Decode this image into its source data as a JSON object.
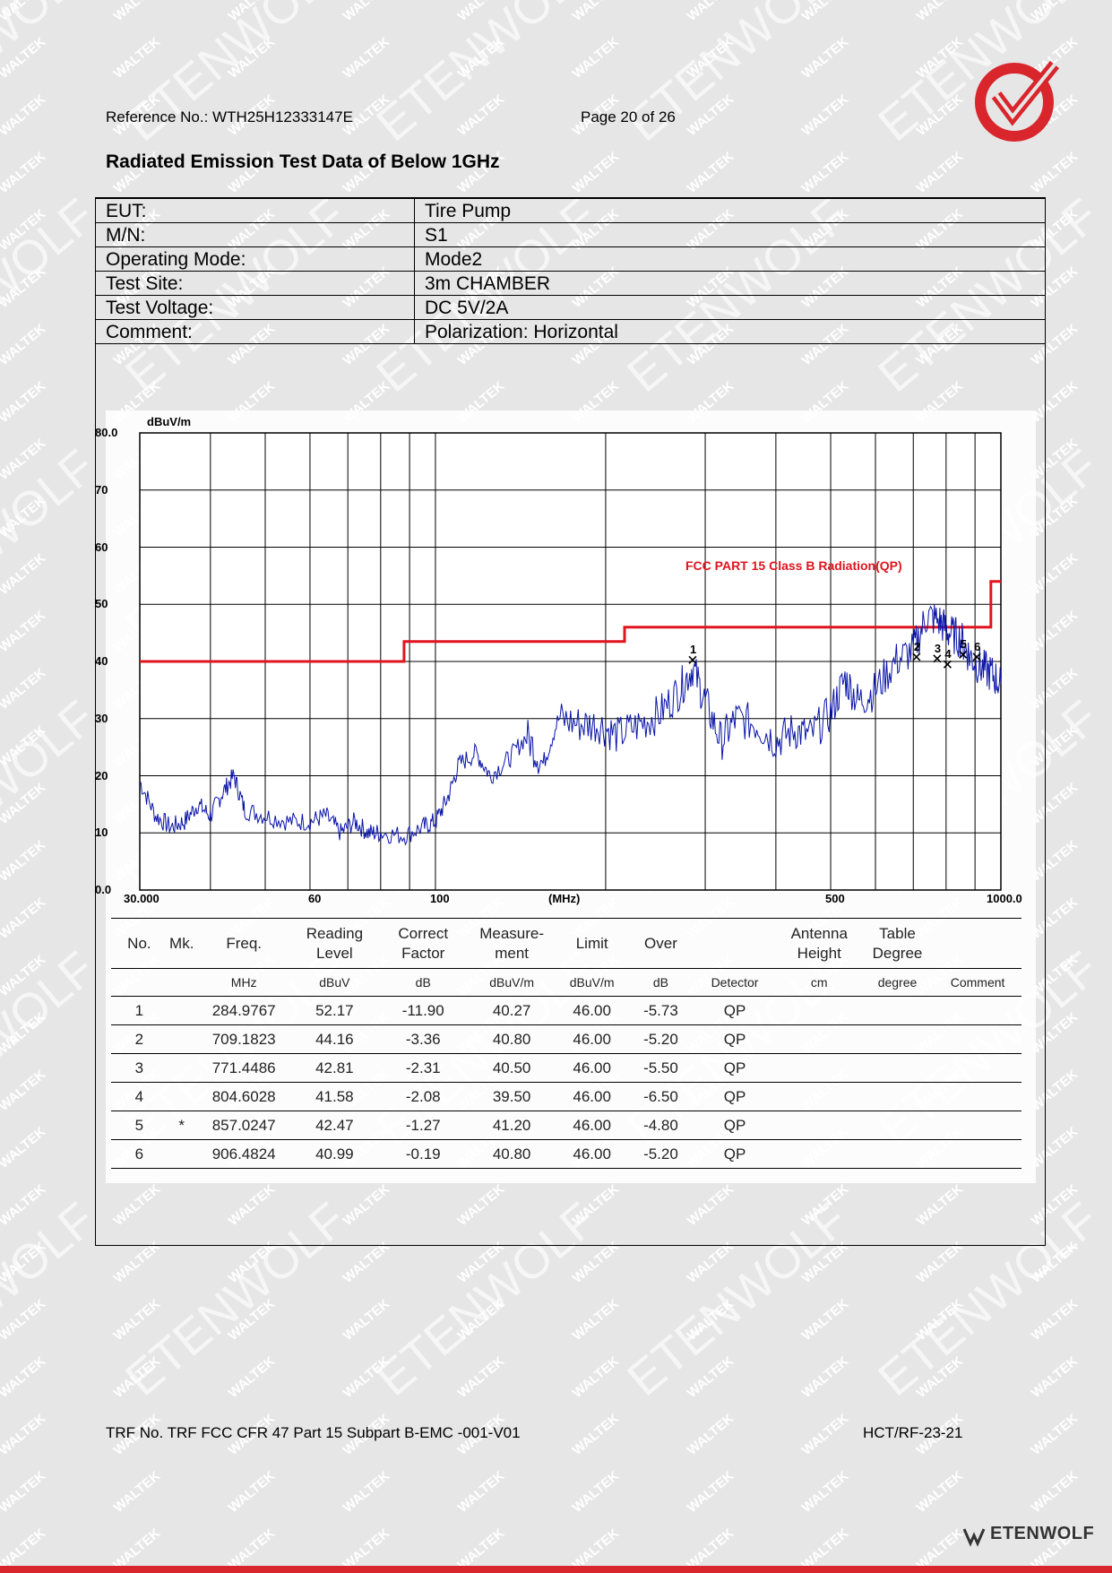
{
  "header": {
    "reference": "Reference No.: WTH25H12333147E",
    "page": "Page 20 of 26"
  },
  "title": "Radiated Emission Test Data of Below 1GHz",
  "info": [
    {
      "label": "EUT:",
      "value": "Tire Pump"
    },
    {
      "label": "M/N:",
      "value": "S1"
    },
    {
      "label": "Operating Mode:",
      "value": "Mode2"
    },
    {
      "label": "Test Site:",
      "value": "3m CHAMBER"
    },
    {
      "label": "Test Voltage:",
      "value": "DC 5V/2A"
    },
    {
      "label": "Comment:",
      "value": "Polarization: Horizontal"
    }
  ],
  "chart_data": {
    "type": "line",
    "ylabel": "dBuV/m",
    "xlabel": "(MHz)",
    "x_scale": "log",
    "xlim": [
      30,
      1000
    ],
    "ylim": [
      0,
      80
    ],
    "y_ticks": [
      "80.0",
      "70",
      "60",
      "50",
      "40",
      "30",
      "20",
      "10",
      "0.0"
    ],
    "x_tick_labels": [
      "30.000",
      "60",
      "100",
      "500",
      "1000.0"
    ],
    "grid": true,
    "limit_line": {
      "name": "FCC PART 15 Class B Radiation(QP)",
      "color": "#e0141e",
      "points": [
        [
          30,
          40
        ],
        [
          88,
          40
        ],
        [
          88,
          43.5
        ],
        [
          216,
          43.5
        ],
        [
          216,
          46
        ],
        [
          960,
          46
        ],
        [
          960,
          54
        ],
        [
          1000,
          54
        ]
      ]
    },
    "trace": {
      "color": "#0a14a8",
      "anchors": [
        [
          30,
          19
        ],
        [
          32,
          13
        ],
        [
          34,
          11
        ],
        [
          36,
          12
        ],
        [
          38,
          15
        ],
        [
          40,
          13
        ],
        [
          42,
          17
        ],
        [
          44,
          20
        ],
        [
          46,
          14
        ],
        [
          50,
          13
        ],
        [
          55,
          12
        ],
        [
          60,
          12
        ],
        [
          64,
          13
        ],
        [
          68,
          10
        ],
        [
          72,
          12
        ],
        [
          76,
          10
        ],
        [
          80,
          10
        ],
        [
          88,
          9.5
        ],
        [
          95,
          11
        ],
        [
          100,
          12
        ],
        [
          105,
          16
        ],
        [
          110,
          22
        ],
        [
          118,
          24
        ],
        [
          125,
          20
        ],
        [
          135,
          23
        ],
        [
          145,
          27
        ],
        [
          155,
          22
        ],
        [
          165,
          30
        ],
        [
          180,
          29
        ],
        [
          195,
          29
        ],
        [
          210,
          27
        ],
        [
          230,
          29
        ],
        [
          250,
          31
        ],
        [
          270,
          35
        ],
        [
          285,
          39
        ],
        [
          300,
          33
        ],
        [
          320,
          26
        ],
        [
          340,
          30
        ],
        [
          370,
          29
        ],
        [
          400,
          26
        ],
        [
          430,
          28
        ],
        [
          460,
          27
        ],
        [
          500,
          31
        ],
        [
          530,
          37
        ],
        [
          560,
          33
        ],
        [
          600,
          35
        ],
        [
          650,
          40
        ],
        [
          700,
          42
        ],
        [
          740,
          48
        ],
        [
          780,
          47
        ],
        [
          810,
          45
        ],
        [
          850,
          44
        ],
        [
          880,
          41
        ],
        [
          920,
          39
        ],
        [
          960,
          38
        ],
        [
          1000,
          36
        ]
      ]
    },
    "markers": [
      {
        "label": "1",
        "x": 284.9767,
        "y": 40.27
      },
      {
        "label": "2",
        "x": 709.1823,
        "y": 40.8
      },
      {
        "label": "3",
        "x": 771.4486,
        "y": 40.5
      },
      {
        "label": "4",
        "x": 804.6028,
        "y": 39.5
      },
      {
        "label": "5",
        "x": 857.0247,
        "y": 41.2
      },
      {
        "label": "6",
        "x": 906.4824,
        "y": 40.8
      }
    ]
  },
  "results": {
    "headers": [
      "No.",
      "Mk.",
      "Freq.",
      "Reading Level",
      "Correct Factor",
      "Measure-ment",
      "Limit",
      "Over",
      "",
      "Antenna Height",
      "Table Degree",
      ""
    ],
    "units": [
      "",
      "",
      "MHz",
      "dBuV",
      "dB",
      "dBuV/m",
      "dBuV/m",
      "dB",
      "Detector",
      "cm",
      "degree",
      "Comment"
    ],
    "rows": [
      [
        "1",
        "",
        "284.9767",
        "52.17",
        "-11.90",
        "40.27",
        "46.00",
        "-5.73",
        "QP",
        "",
        "",
        ""
      ],
      [
        "2",
        "",
        "709.1823",
        "44.16",
        "-3.36",
        "40.80",
        "46.00",
        "-5.20",
        "QP",
        "",
        "",
        ""
      ],
      [
        "3",
        "",
        "771.4486",
        "42.81",
        "-2.31",
        "40.50",
        "46.00",
        "-5.50",
        "QP",
        "",
        "",
        ""
      ],
      [
        "4",
        "",
        "804.6028",
        "41.58",
        "-2.08",
        "39.50",
        "46.00",
        "-6.50",
        "QP",
        "",
        "",
        ""
      ],
      [
        "5",
        "*",
        "857.0247",
        "42.47",
        "-1.27",
        "41.20",
        "46.00",
        "-4.80",
        "QP",
        "",
        "",
        ""
      ],
      [
        "6",
        "",
        "906.4824",
        "40.99",
        "-0.19",
        "40.80",
        "46.00",
        "-5.20",
        "QP",
        "",
        "",
        ""
      ]
    ]
  },
  "footer": {
    "left": "TRF No. TRF FCC CFR 47 Part 15 Subpart B-EMC -001-V01",
    "right": "HCT/RF-23-21"
  },
  "brand": "ETENWOLF",
  "watermark": {
    "small": "WALTEK",
    "large": "ETENWOLF"
  },
  "colors": {
    "accent": "#d9252c",
    "trace": "#0a14a8",
    "limit": "#e0141e"
  }
}
